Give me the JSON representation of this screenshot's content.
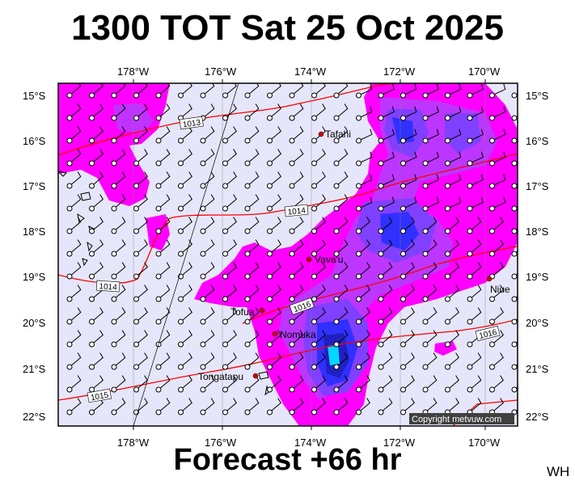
{
  "title": "1300 TOT Sat 25 Oct 2025",
  "footer": "Forecast +66 hr",
  "corner_initials": "WH",
  "copyright": "Copyright metvuw.com",
  "longitude_labels": [
    "178°W",
    "176°W",
    "174°W",
    "172°W",
    "170°W"
  ],
  "latitude_labels": [
    "15°S",
    "16°S",
    "17°S",
    "18°S",
    "19°S",
    "20°S",
    "21°S",
    "22°S"
  ],
  "isobar_labels": [
    "1013",
    "1014",
    "1014",
    "1016",
    "1016",
    "1015"
  ],
  "places": [
    "Tafahi",
    "Vava'u",
    "Niue",
    "Tofua",
    "Nomuka",
    "Tongatapu"
  ],
  "colors": {
    "background": "#e6e6fa",
    "magenta": "#ff00ff",
    "purple": "#b040ff",
    "violet": "#8040ff",
    "blue": "#3030ff",
    "deep_blue": "#2020c0",
    "cyan": "#00d8ff",
    "isobar": "#ff0000",
    "place_marker": "#d00000"
  }
}
